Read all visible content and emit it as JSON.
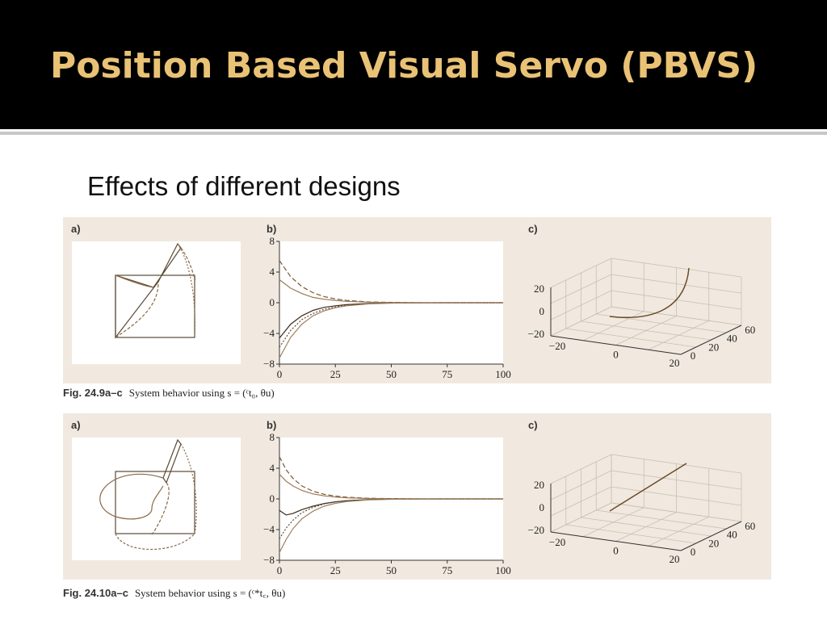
{
  "slide": {
    "title": "Position Based Visual Servo (PBVS)",
    "subtitle": "Effects of different designs"
  },
  "figures": [
    {
      "caption_fig": "Fig. 24.9a–c",
      "caption_text": "System behavior using s = (ᶜt₀, θu)",
      "panel_labels": [
        "a)",
        "b)",
        "c)"
      ],
      "plot_b": {
        "y_ticks": [
          "8",
          "4",
          "0",
          "−4",
          "−8"
        ],
        "x_ticks": [
          "0",
          "25",
          "50",
          "75",
          "100"
        ]
      },
      "plot_c": {
        "z_ticks": [
          "20",
          "0",
          "−20"
        ],
        "x_ticks": [
          "−20",
          "0",
          "20"
        ],
        "y_ticks": [
          "0",
          "20",
          "40",
          "60"
        ]
      }
    },
    {
      "caption_fig": "Fig. 24.10a–c",
      "caption_text": "System behavior using s = (ᶜ*t꜀, θu)",
      "panel_labels": [
        "a)",
        "b)",
        "c)"
      ],
      "plot_b": {
        "y_ticks": [
          "8",
          "4",
          "0",
          "−4",
          "−8"
        ],
        "x_ticks": [
          "0",
          "25",
          "50",
          "75",
          "100"
        ]
      },
      "plot_c": {
        "z_ticks": [
          "20",
          "0",
          "−20"
        ],
        "x_ticks": [
          "−20",
          "0",
          "20"
        ],
        "y_ticks": [
          "0",
          "20",
          "40",
          "60"
        ]
      }
    }
  ],
  "chart_data": [
    {
      "type": "line",
      "figure": "Fig. 24.9b",
      "x": [
        0,
        5,
        10,
        15,
        20,
        25,
        30,
        40,
        50,
        60,
        75,
        100
      ],
      "series": [
        {
          "values": [
            5.5,
            3.4,
            2.1,
            1.3,
            0.8,
            0.5,
            0.3,
            0.1,
            0.04,
            0.01,
            0,
            0
          ]
        },
        {
          "values": [
            3.0,
            1.9,
            1.2,
            0.7,
            0.45,
            0.3,
            0.18,
            0.07,
            0.02,
            0.01,
            0,
            0
          ]
        },
        {
          "values": [
            -4.6,
            -2.8,
            -1.7,
            -1.0,
            -0.6,
            -0.4,
            -0.25,
            -0.09,
            -0.03,
            -0.01,
            0,
            0
          ]
        },
        {
          "values": [
            -5.8,
            -3.6,
            -2.2,
            -1.4,
            -0.85,
            -0.55,
            -0.33,
            -0.12,
            -0.04,
            -0.01,
            0,
            0
          ]
        },
        {
          "values": [
            -7.2,
            -4.5,
            -2.8,
            -1.7,
            -1.05,
            -0.65,
            -0.4,
            -0.15,
            -0.05,
            -0.02,
            0,
            0
          ]
        }
      ],
      "xlim": [
        0,
        100
      ],
      "ylim": [
        -8,
        8
      ],
      "grid": false
    },
    {
      "type": "line",
      "figure": "Fig. 24.10b",
      "x": [
        0,
        3,
        6,
        10,
        15,
        20,
        25,
        30,
        40,
        50,
        60,
        75,
        100
      ],
      "series": [
        {
          "values": [
            5.5,
            3.8,
            2.7,
            1.7,
            1.0,
            0.6,
            0.37,
            0.22,
            0.08,
            0.03,
            0.01,
            0,
            0
          ]
        },
        {
          "values": [
            3.2,
            2.3,
            1.7,
            1.1,
            0.65,
            0.4,
            0.24,
            0.14,
            0.05,
            0.02,
            0.01,
            0,
            0
          ]
        },
        {
          "values": [
            -1.5,
            -2.1,
            -1.9,
            -1.4,
            -0.95,
            -0.6,
            -0.38,
            -0.23,
            -0.08,
            -0.03,
            -0.01,
            0,
            0
          ]
        },
        {
          "values": [
            -5.2,
            -3.8,
            -2.8,
            -1.8,
            -1.1,
            -0.65,
            -0.4,
            -0.24,
            -0.09,
            -0.03,
            -0.01,
            0,
            0
          ]
        },
        {
          "values": [
            -7.0,
            -5.3,
            -3.9,
            -2.6,
            -1.6,
            -0.95,
            -0.58,
            -0.35,
            -0.13,
            -0.05,
            -0.02,
            0,
            0
          ]
        }
      ],
      "xlim": [
        0,
        100
      ],
      "ylim": [
        -8,
        8
      ],
      "grid": false
    }
  ],
  "colors": {
    "header_bg": "#000000",
    "title": "#e9c275",
    "panel_bg": "#f1e9df",
    "curve": "#7a5a35"
  }
}
